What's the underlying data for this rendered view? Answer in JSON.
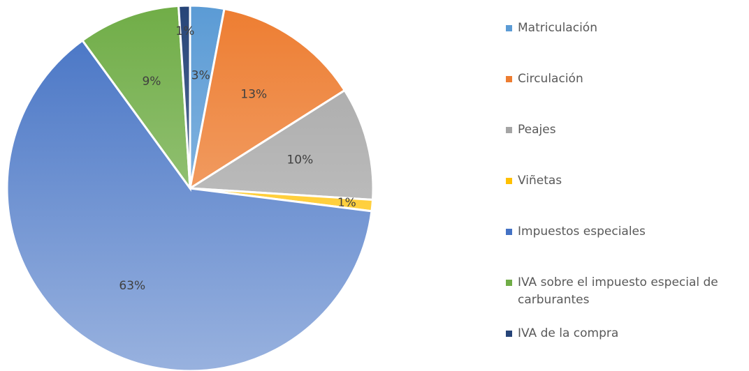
{
  "chart_data": {
    "type": "pie",
    "categories": [
      "Matriculación",
      "Circulación",
      "Peajes",
      "Viñetas",
      "Impuestos especiales",
      "IVA sobre el impuesto especial de carburantes",
      "IVA de la compra"
    ],
    "values": [
      3,
      13,
      10,
      1,
      63,
      9,
      1
    ],
    "value_labels": [
      "3%",
      "13%",
      "10%",
      "1%",
      "63%",
      "9%",
      "1%"
    ],
    "colors": [
      "#5b9bd5",
      "#ed7d31",
      "#a5a5a5",
      "#ffc000",
      "#4472c4",
      "#70ad47",
      "#264478"
    ],
    "legend": "right"
  }
}
